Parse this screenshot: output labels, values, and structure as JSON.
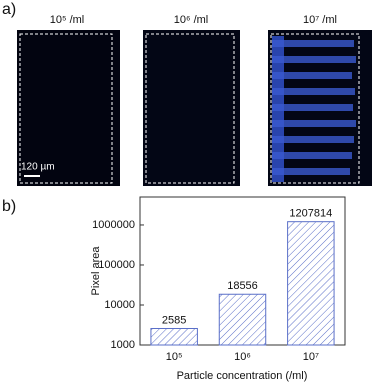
{
  "panel_labels": [
    "a)",
    "b)"
  ],
  "images": [
    {
      "label": "10⁵ /ml"
    },
    {
      "label": "10⁶ /ml"
    },
    {
      "label": "10⁷ /ml"
    }
  ],
  "scale_bar": "120 µm",
  "chart_data": {
    "type": "bar",
    "ylabel": "Pixel area",
    "xlabel": "Particle concentration (/ml)",
    "categories": [
      "10⁵",
      "10⁶",
      "10⁷"
    ],
    "values": [
      2585,
      18556,
      1207814
    ],
    "color": "#5a6fc8",
    "ylim": [
      1000,
      5000000
    ],
    "yticks": [
      1000,
      10000,
      100000,
      1000000
    ],
    "log_scale": true,
    "grid": false
  }
}
